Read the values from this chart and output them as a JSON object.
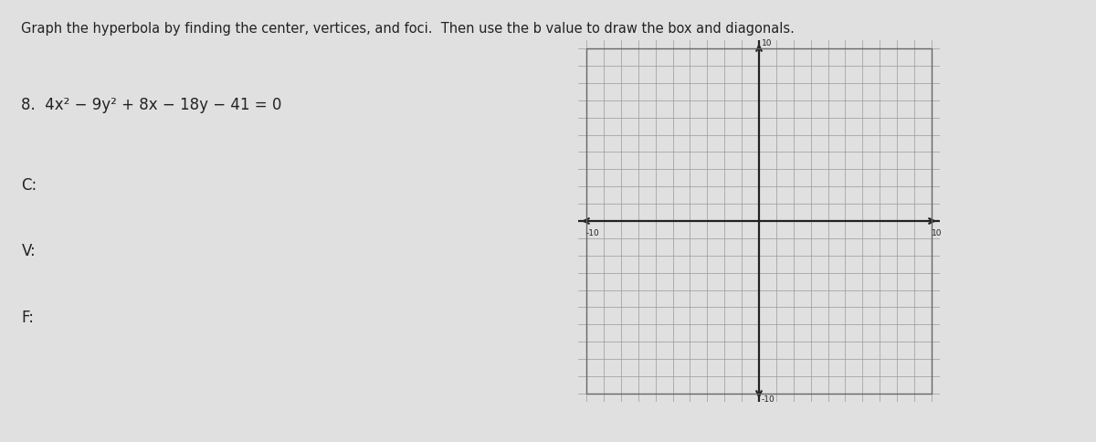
{
  "title": "Graph the hyperbola by finding the center, vertices, and foci.  Then use the b value to draw the box and diagonals.",
  "problem_number": "8.",
  "equation": "4x² − 9y² + 8x − 18y − 41 = 0",
  "labels": [
    "C:",
    "V:",
    "F:"
  ],
  "grid_min": -10,
  "grid_max": 10,
  "grid_step": 1,
  "bg_color": "#e0e0e0",
  "grid_bg_color": "#f0f0f0",
  "grid_color": "#999999",
  "axis_color": "#222222",
  "text_color": "#222222",
  "title_fontsize": 10.5,
  "label_fontsize": 12,
  "equation_fontsize": 12,
  "tick_fontsize": 6.5
}
